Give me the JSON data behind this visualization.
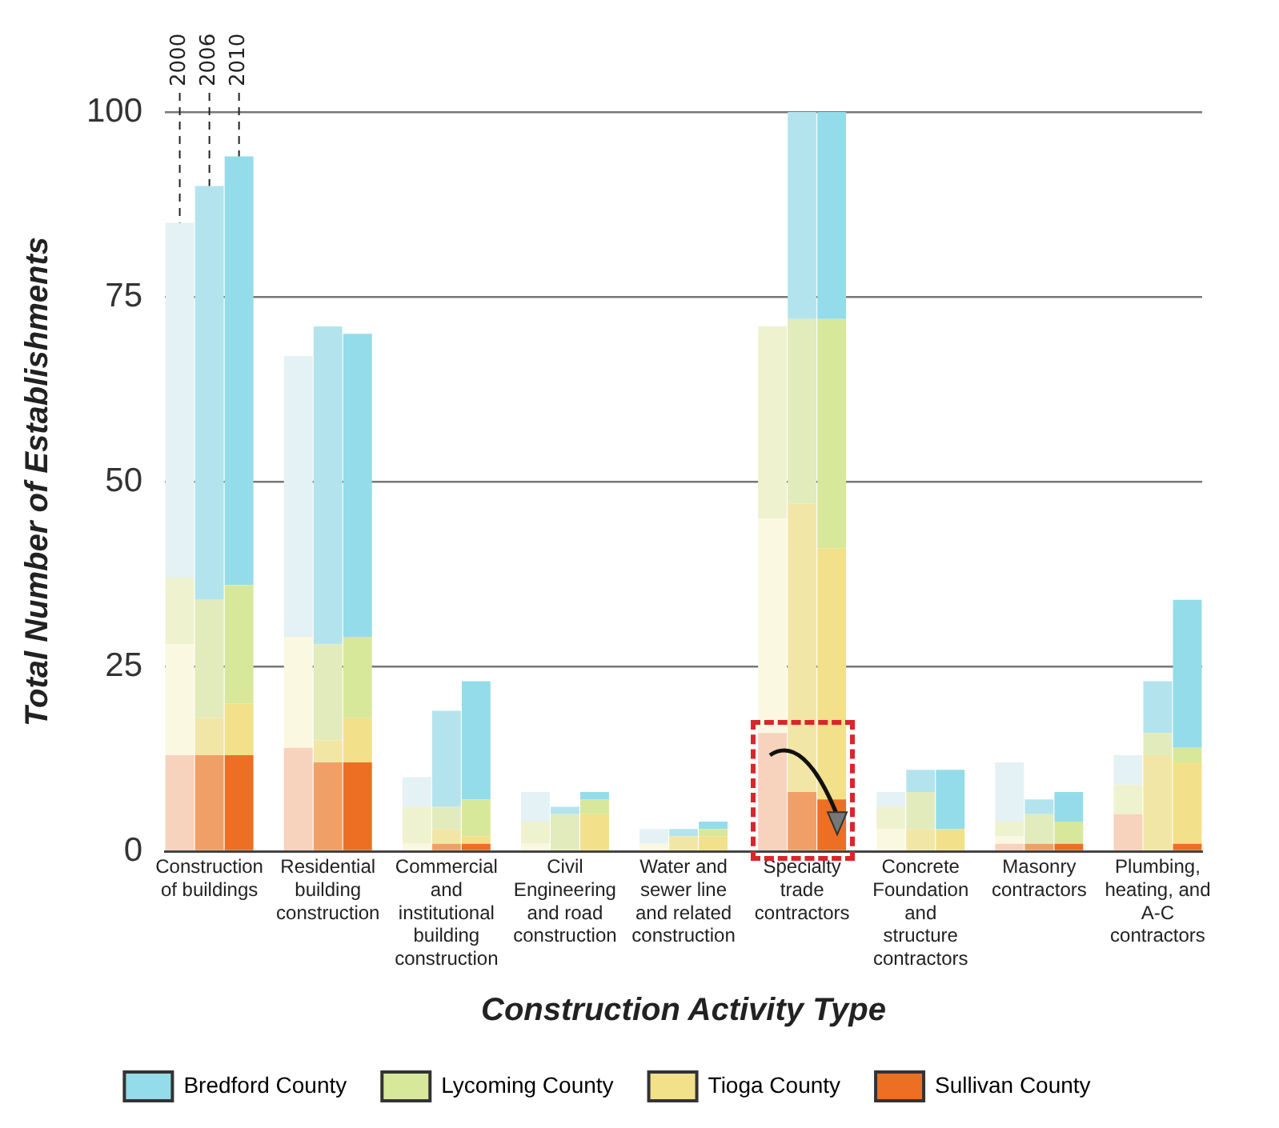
{
  "chart_data": {
    "type": "bar",
    "stacked": true,
    "xlabel": "Construction Activity Type",
    "ylabel": "Total Number of Establishments",
    "categories": [
      null,
      "Construction of buildings",
      null,
      null,
      null,
      "Residential building construction",
      null,
      null,
      null,
      "Commercial and institutional building construction",
      null,
      null,
      null,
      "Civil Engineering and road construction",
      null,
      null,
      null,
      "Water and sewer line and related construction",
      null,
      null,
      null,
      "Specialty trade contractors",
      null,
      null,
      null,
      "Concrete Foundation and structure contractors",
      null,
      null,
      null,
      "Masonry contractors",
      null,
      null,
      null,
      "Plumbing, heating, and A-C contractors",
      null
    ],
    "series": [
      {
        "name": "Sullivan County",
        "color": "#ec6f24",
        "colors": [
          "#f7d2bc",
          "#f0a066",
          "#ec6f24",
          null,
          "#f7d2bc",
          "#f0a066",
          "#ec6f24",
          null,
          "#f7d2bc",
          "#f0a066",
          "#ec6f24",
          null,
          "#f7d2bc",
          "#f0a066",
          "#ec6f24",
          null,
          "#f7d2bc",
          "#f0a066",
          "#ec6f24",
          null,
          "#f7d2bc",
          "#f0a066",
          "#ec6f24",
          null,
          "#f7d2bc",
          "#f0a066",
          "#ec6f24",
          null,
          "#f7d2bc",
          "#f0a066",
          "#ec6f24",
          null,
          "#f7d2bc",
          "#f0a066",
          "#ec6f24"
        ],
        "values": [
          13,
          13,
          13,
          null,
          14,
          12,
          12,
          null,
          0,
          1,
          1,
          null,
          0,
          0,
          0,
          null,
          0,
          0,
          0,
          null,
          16,
          8,
          7,
          null,
          0,
          0,
          0,
          null,
          1,
          1,
          1,
          null,
          5,
          0,
          1
        ]
      },
      {
        "name": "Tioga County",
        "color": "#f2e08a",
        "colors": [
          "#fbf8e2",
          "#f2e6a6",
          "#f2e08a",
          null,
          "#fbf8e2",
          "#f2e6a6",
          "#f2e08a",
          null,
          "#fbf8e2",
          "#f2e6a6",
          "#f2e08a",
          null,
          "#fbf8e2",
          "#f2e6a6",
          "#f2e08a",
          null,
          "#fbf8e2",
          "#f2e6a6",
          "#f2e08a",
          null,
          "#fbf8e2",
          "#f2e6a6",
          "#f2e08a",
          null,
          "#fbf8e2",
          "#f2e6a6",
          "#f2e08a",
          null,
          "#fbf8e2",
          "#f2e6a6",
          "#f2e08a",
          null,
          "#fbf8e2",
          "#f2e6a6",
          "#f2e08a"
        ],
        "values": [
          15,
          5,
          7,
          null,
          15,
          3,
          6,
          null,
          1,
          2,
          1,
          null,
          1,
          0,
          5,
          null,
          1,
          2,
          2,
          null,
          29,
          39,
          34,
          null,
          3,
          3,
          3,
          null,
          1,
          0,
          0,
          null,
          0,
          13,
          11
        ]
      },
      {
        "name": "Lycoming County",
        "color": "#d7e89b",
        "colors": [
          "#eff2cf",
          "#e2ebbc",
          "#d7e89b",
          null,
          "#eff2cf",
          "#e2ebbc",
          "#d7e89b",
          null,
          "#eff2cf",
          "#e2ebbc",
          "#d7e89b",
          null,
          "#eff2cf",
          "#e2ebbc",
          "#d7e89b",
          null,
          "#eff2cf",
          "#e2ebbc",
          "#d7e89b",
          null,
          "#eff2cf",
          "#e2ebbc",
          "#d7e89b",
          null,
          "#eff2cf",
          "#e2ebbc",
          "#d7e89b",
          null,
          "#eff2cf",
          "#e2ebbc",
          "#d7e89b",
          null,
          "#eff2cf",
          "#e2ebbc",
          "#d7e89b"
        ],
        "values": [
          9,
          16,
          16,
          null,
          0,
          13,
          11,
          null,
          5,
          3,
          5,
          null,
          3,
          5,
          2,
          null,
          0,
          0,
          1,
          null,
          26,
          25,
          31,
          null,
          3,
          5,
          0,
          null,
          2,
          4,
          3,
          null,
          4,
          3,
          2
        ]
      },
      {
        "name": "Bredford County",
        "color": "#94dcea",
        "colors": [
          "#e4f1f5",
          "#b3e4ee",
          "#94dcea",
          null,
          "#e4f1f5",
          "#b3e4ee",
          "#94dcea",
          null,
          "#e4f1f5",
          "#b3e4ee",
          "#94dcea",
          null,
          "#e4f1f5",
          "#b3e4ee",
          "#94dcea",
          null,
          "#e4f1f5",
          "#b3e4ee",
          "#94dcea",
          null,
          "#e4f1f5",
          "#b3e4ee",
          "#94dcea",
          null,
          "#e4f1f5",
          "#b3e4ee",
          "#94dcea",
          null,
          "#e4f1f5",
          "#b3e4ee",
          "#94dcea",
          null,
          "#e4f1f5",
          "#b3e4ee",
          "#94dcea"
        ],
        "values": [
          48,
          56,
          58,
          null,
          38,
          43,
          41,
          null,
          4,
          13,
          16,
          null,
          4,
          1,
          1,
          null,
          2,
          1,
          1,
          null,
          0,
          28,
          28,
          null,
          2,
          3,
          8,
          null,
          8,
          2,
          4,
          null,
          4,
          7,
          20
        ]
      }
    ],
    "annotations": [
      {
        "text": "2000",
        "y": 85
      },
      {
        "text": "2006",
        "y": 90
      },
      {
        "text": "2010",
        "y": 94
      }
    ],
    "ylim": [
      0,
      100
    ],
    "yticks": [
      0,
      25,
      50,
      75,
      100
    ],
    "grid": "y",
    "legend": "bottom"
  }
}
